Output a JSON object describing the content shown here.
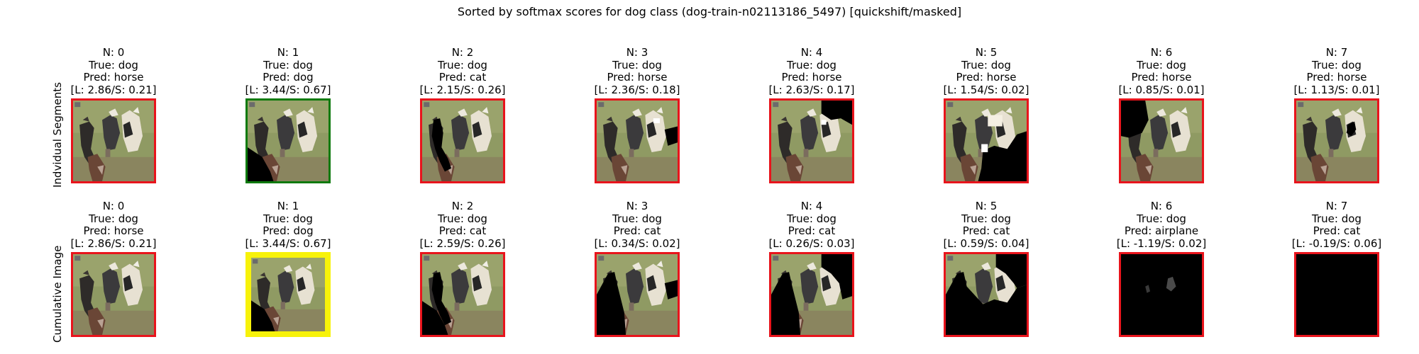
{
  "figure": {
    "title": "Sorted by softmax scores for dog class (dog-train-n02113186_5497) [quickshift/masked]",
    "row_labels": [
      "Indvidual Segments",
      "Cumulative Image"
    ],
    "colors": {
      "red": "#e8141c",
      "green": "#0e7a0e",
      "yellow": "#f7f20a"
    }
  },
  "rows": [
    {
      "panels": [
        {
          "n": "N: 0",
          "true_label": "True: dog",
          "pred": "Pred: horse",
          "scores": "[L: 2.86/S: 0.21]",
          "border": "red",
          "mask": "none"
        },
        {
          "n": "N: 1",
          "true_label": "True: dog",
          "pred": "Pred: dog",
          "scores": "[L: 3.44/S: 0.67]",
          "border": "green",
          "mask": "bottom-left"
        },
        {
          "n": "N: 2",
          "true_label": "True: dog",
          "pred": "Pred: cat",
          "scores": "[L: 2.15/S: 0.26]",
          "border": "red",
          "mask": "center-left"
        },
        {
          "n": "N: 3",
          "true_label": "True: dog",
          "pred": "Pred: horse",
          "scores": "[L: 2.36/S: 0.18]",
          "border": "red",
          "mask": "right-patch"
        },
        {
          "n": "N: 4",
          "true_label": "True: dog",
          "pred": "Pred: horse",
          "scores": "[L: 2.63/S: 0.17]",
          "border": "red",
          "mask": "top-right"
        },
        {
          "n": "N: 5",
          "true_label": "True: dog",
          "pred": "Pred: horse",
          "scores": "[L: 1.54/S: 0.02]",
          "border": "red",
          "mask": "bottom-right"
        },
        {
          "n": "N: 6",
          "true_label": "True: dog",
          "pred": "Pred: horse",
          "scores": "[L: 0.85/S: 0.01]",
          "border": "red",
          "mask": "left-top"
        },
        {
          "n": "N: 7",
          "true_label": "True: dog",
          "pred": "Pred: horse",
          "scores": "[L: 1.13/S: 0.01]",
          "border": "red",
          "mask": "small-right"
        }
      ]
    },
    {
      "panels": [
        {
          "n": "N: 0",
          "true_label": "True: dog",
          "pred": "Pred: horse",
          "scores": "[L: 2.86/S: 0.21]",
          "border": "red",
          "mask": "none"
        },
        {
          "n": "N: 1",
          "true_label": "True: dog",
          "pred": "Pred: dog",
          "scores": "[L: 3.44/S: 0.67]",
          "border": "yellow",
          "mask": "bottom-left"
        },
        {
          "n": "N: 2",
          "true_label": "True: dog",
          "pred": "Pred: cat",
          "scores": "[L: 2.59/S: 0.26]",
          "border": "red",
          "mask": "cum2"
        },
        {
          "n": "N: 3",
          "true_label": "True: dog",
          "pred": "Pred: cat",
          "scores": "[L: 0.34/S: 0.02]",
          "border": "red",
          "mask": "cum3"
        },
        {
          "n": "N: 4",
          "true_label": "True: dog",
          "pred": "Pred: cat",
          "scores": "[L: 0.26/S: 0.03]",
          "border": "red",
          "mask": "cum4"
        },
        {
          "n": "N: 5",
          "true_label": "True: dog",
          "pred": "Pred: cat",
          "scores": "[L: 0.59/S: 0.04]",
          "border": "red",
          "mask": "cum5"
        },
        {
          "n": "N: 6",
          "true_label": "True: dog",
          "pred": "Pred: airplane",
          "scores": "[L: -1.19/S: 0.02]",
          "border": "red",
          "mask": "cum6"
        },
        {
          "n": "N: 7",
          "true_label": "True: dog",
          "pred": "Pred: cat",
          "scores": "[L: -0.19/S: 0.06]",
          "border": "red",
          "mask": "all"
        }
      ]
    }
  ]
}
